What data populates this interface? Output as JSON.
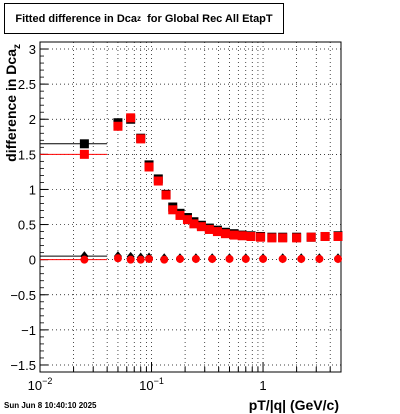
{
  "chart_data": {
    "type": "scatter",
    "title_main": "Fitted difference in Dca",
    "title_sub": "z",
    "title_tail": "for Global Rec All EtapT",
    "xlabel": "pT/|q| (GeV/c)",
    "ylabel_main": "difference in Dca",
    "ylabel_sub": "z",
    "xscale": "log",
    "xlim": [
      0.01,
      5
    ],
    "ylim": [
      -1.6,
      3.1
    ],
    "grid": true,
    "x_ticks": [
      {
        "value": 0.01,
        "label": "10",
        "sup": "−2"
      },
      {
        "value": 0.1,
        "label": "10",
        "sup": "−1"
      },
      {
        "value": 1,
        "label": "1",
        "sup": ""
      }
    ],
    "y_ticks": [
      -1.5,
      -1,
      -0.5,
      0,
      0.5,
      1,
      1.5,
      2,
      2.5,
      3
    ],
    "y_tick_labels": [
      "−1.5",
      "−1",
      "−0.5",
      "0",
      "0.5",
      "1",
      "1.5",
      "2",
      "2.5",
      "3"
    ],
    "series": [
      {
        "color": "#000000",
        "marker": "square",
        "points": [
          [
            0.025,
            1.65
          ],
          [
            0.05,
            1.95
          ],
          [
            0.065,
            2.0
          ],
          [
            0.08,
            1.73
          ],
          [
            0.095,
            1.35
          ],
          [
            0.115,
            1.15
          ],
          [
            0.135,
            0.93
          ],
          [
            0.155,
            0.75
          ],
          [
            0.18,
            0.66
          ],
          [
            0.21,
            0.6
          ],
          [
            0.24,
            0.54
          ],
          [
            0.28,
            0.49
          ],
          [
            0.33,
            0.45
          ],
          [
            0.39,
            0.42
          ],
          [
            0.46,
            0.39
          ],
          [
            0.55,
            0.37
          ],
          [
            0.65,
            0.35
          ],
          [
            0.78,
            0.34
          ],
          [
            0.95,
            0.33
          ],
          [
            1.2,
            0.32
          ],
          [
            1.5,
            0.32
          ],
          [
            2.0,
            0.32
          ],
          [
            2.7,
            0.32
          ],
          [
            3.6,
            0.33
          ],
          [
            4.7,
            0.34
          ]
        ],
        "x_err_first": [
          0.01,
          0.04
        ]
      },
      {
        "color": "#ff0000",
        "marker": "square",
        "points": [
          [
            0.025,
            1.5
          ],
          [
            0.05,
            1.9
          ],
          [
            0.065,
            2.02
          ],
          [
            0.08,
            1.72
          ],
          [
            0.095,
            1.32
          ],
          [
            0.115,
            1.12
          ],
          [
            0.135,
            0.92
          ],
          [
            0.155,
            0.71
          ],
          [
            0.18,
            0.63
          ],
          [
            0.21,
            0.57
          ],
          [
            0.24,
            0.51
          ],
          [
            0.28,
            0.47
          ],
          [
            0.33,
            0.43
          ],
          [
            0.39,
            0.4
          ],
          [
            0.46,
            0.37
          ],
          [
            0.55,
            0.35
          ],
          [
            0.65,
            0.34
          ],
          [
            0.78,
            0.33
          ],
          [
            0.95,
            0.32
          ],
          [
            1.2,
            0.31
          ],
          [
            1.5,
            0.31
          ],
          [
            2.0,
            0.31
          ],
          [
            2.7,
            0.32
          ],
          [
            3.6,
            0.33
          ],
          [
            4.7,
            0.33
          ]
        ],
        "x_err_first": [
          0.01,
          0.04
        ]
      },
      {
        "color": "#000000",
        "marker": "diamond",
        "points": [
          [
            0.025,
            0.05
          ],
          [
            0.05,
            0.05
          ],
          [
            0.065,
            0.04
          ],
          [
            0.08,
            0.03
          ],
          [
            0.095,
            0.03
          ],
          [
            0.13,
            0.02
          ],
          [
            0.18,
            0.02
          ],
          [
            0.25,
            0.02
          ],
          [
            0.35,
            0.02
          ],
          [
            0.5,
            0.02
          ],
          [
            0.7,
            0.02
          ],
          [
            1.0,
            0.02
          ],
          [
            1.5,
            0.02
          ],
          [
            2.2,
            0.02
          ],
          [
            3.2,
            0.02
          ],
          [
            4.7,
            0.02
          ]
        ],
        "x_err_first": [
          0.01,
          0.04
        ]
      },
      {
        "color": "#ff0000",
        "marker": "circle",
        "points": [
          [
            0.025,
            0.0
          ],
          [
            0.05,
            0.02
          ],
          [
            0.065,
            0.0
          ],
          [
            0.08,
            0.0
          ],
          [
            0.095,
            0.01
          ],
          [
            0.13,
            0.0
          ],
          [
            0.18,
            0.01
          ],
          [
            0.25,
            0.01
          ],
          [
            0.35,
            0.01
          ],
          [
            0.5,
            0.01
          ],
          [
            0.7,
            0.01
          ],
          [
            1.0,
            0.01
          ],
          [
            1.5,
            0.01
          ],
          [
            2.2,
            0.01
          ],
          [
            3.2,
            0.01
          ],
          [
            4.7,
            0.01
          ]
        ],
        "x_err_first": [
          0.01,
          0.04
        ]
      }
    ]
  },
  "timestamp": "Sun Jun  8 10:40:10 2025"
}
